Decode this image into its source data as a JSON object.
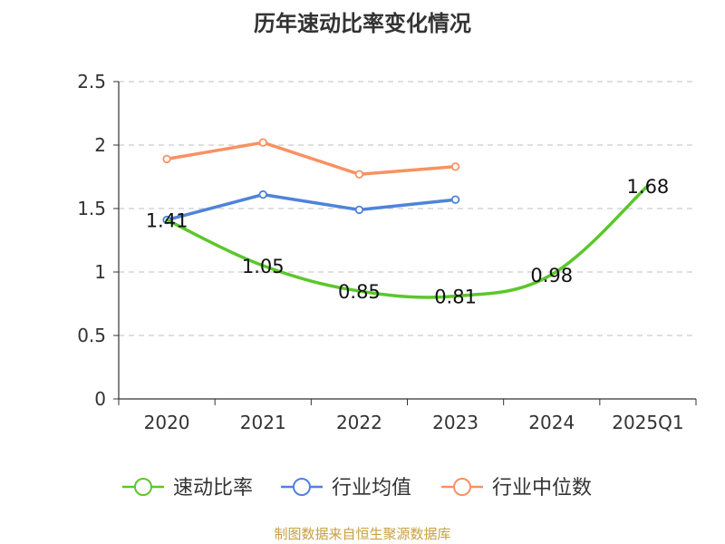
{
  "title": "历年速动比率变化情况",
  "source": "制图数据来自恒生聚源数据库",
  "chart_data": {
    "type": "line",
    "categories": [
      "2020",
      "2021",
      "2022",
      "2023",
      "2024",
      "2025Q1"
    ],
    "ylim": [
      0,
      2.5
    ],
    "yticks": [
      "0",
      "0.5",
      "1",
      "1.5",
      "2",
      "2.5"
    ],
    "grid": true,
    "legend_position": "bottom",
    "series": [
      {
        "name": "速动比率",
        "color": "#5bc72b",
        "values": [
          1.41,
          1.05,
          0.85,
          0.81,
          0.98,
          1.68
        ],
        "labels": [
          "1.41",
          "1.05",
          "0.85",
          "0.81",
          "0.98",
          "1.68"
        ]
      },
      {
        "name": "行业均值",
        "color": "#4f83d8",
        "values": [
          1.41,
          1.61,
          1.49,
          1.57,
          null,
          null
        ]
      },
      {
        "name": "行业中位数",
        "color": "#f79263",
        "values": [
          1.89,
          2.02,
          1.77,
          1.83,
          null,
          null
        ]
      }
    ]
  }
}
